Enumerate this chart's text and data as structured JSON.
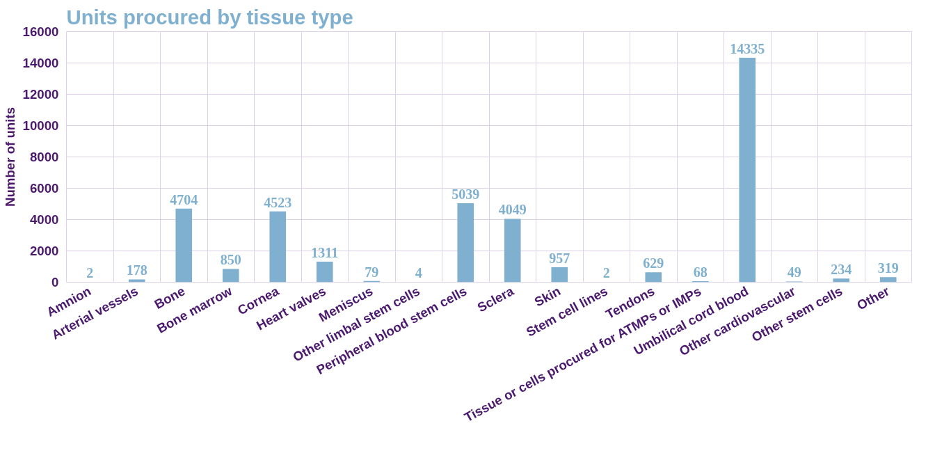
{
  "chart_data": {
    "type": "bar",
    "title": "Units procured by tissue type",
    "ylabel": "Number of units",
    "categories": [
      "Amnion",
      "Arterial vessels",
      "Bone",
      "Bone marrow",
      "Cornea",
      "Heart valves",
      "Meniscus",
      "Other limbal stem cells",
      "Peripheral blood stem cells",
      "Sclera",
      "Skin",
      "Stem cell lines",
      "Tendons",
      "Tissue or cells procured for ATMPs or IMPs",
      "Umbilical cord blood",
      "Other cardiovascular",
      "Other stem cells",
      "Other"
    ],
    "values": [
      2,
      178,
      4704,
      850,
      4523,
      1311,
      79,
      4,
      5039,
      4049,
      957,
      2,
      629,
      68,
      14335,
      49,
      234,
      319
    ],
    "color": "#7fb0cf",
    "ylim": [
      0,
      16000
    ],
    "yticks": [
      0,
      2000,
      4000,
      6000,
      8000,
      10000,
      12000,
      14000,
      16000
    ],
    "grid": true,
    "data_labels": true
  }
}
